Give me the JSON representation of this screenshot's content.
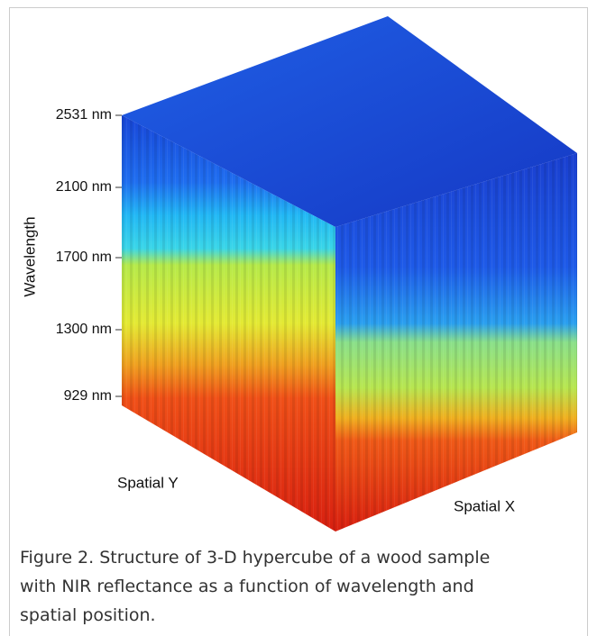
{
  "figure": {
    "axis_label": "Wavelength",
    "wavelength_ticks": [
      "2531 nm",
      "2100 nm",
      "1700 nm",
      "1300 nm",
      "929 nm"
    ],
    "spatial_y_label": "Spatial Y",
    "spatial_x_label": "Spatial X"
  },
  "caption": {
    "lines": [
      "Figure 2. Structure of 3-D hypercube of a wood sample",
      "with NIR reflectance as a function of wavelength and",
      "spatial position."
    ]
  }
}
